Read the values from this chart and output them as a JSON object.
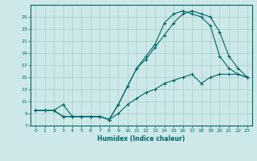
{
  "xlabel": "Humidex (Indice chaleur)",
  "bg_color": "#cce8e8",
  "grid_color": "#aacccc",
  "line_color": "#006666",
  "xlim": [
    -0.5,
    23.5
  ],
  "ylim": [
    7,
    27
  ],
  "xticks": [
    0,
    1,
    2,
    3,
    4,
    5,
    6,
    7,
    8,
    9,
    10,
    11,
    12,
    13,
    14,
    15,
    16,
    17,
    18,
    19,
    20,
    21,
    22,
    23
  ],
  "yticks": [
    7,
    9,
    11,
    13,
    15,
    17,
    19,
    21,
    23,
    25
  ],
  "line1_x": [
    0,
    1,
    2,
    3,
    4,
    5,
    6,
    7,
    8,
    9,
    10,
    11,
    12,
    13,
    14,
    15,
    16,
    17,
    18,
    19,
    20,
    21,
    22,
    23
  ],
  "line1_y": [
    9.5,
    9.5,
    9.5,
    10.5,
    8.5,
    8.5,
    8.5,
    8.5,
    8.0,
    10.5,
    13.5,
    16.5,
    18.5,
    20.5,
    24.0,
    25.5,
    26.0,
    25.5,
    25.0,
    23.5,
    18.5,
    16.5,
    15.5,
    15.0
  ],
  "line2_x": [
    0,
    1,
    2,
    3,
    4,
    5,
    6,
    7,
    8,
    9,
    10,
    11,
    12,
    13,
    14,
    15,
    16,
    17,
    18,
    19,
    20,
    21,
    22,
    23
  ],
  "line2_y": [
    9.5,
    9.5,
    9.5,
    8.5,
    8.5,
    8.5,
    8.5,
    8.5,
    8.0,
    10.5,
    13.5,
    16.5,
    18.0,
    20.0,
    22.0,
    24.0,
    25.5,
    26.0,
    25.5,
    25.0,
    22.5,
    18.5,
    16.5,
    15.0
  ],
  "line3_x": [
    0,
    1,
    2,
    3,
    4,
    5,
    6,
    7,
    8,
    9,
    10,
    11,
    12,
    13,
    14,
    15,
    16,
    17,
    18,
    19,
    20,
    21,
    22,
    23
  ],
  "line3_y": [
    9.5,
    9.5,
    9.5,
    8.5,
    8.5,
    8.5,
    8.5,
    8.5,
    8.0,
    9.0,
    10.5,
    11.5,
    12.5,
    13.0,
    14.0,
    14.5,
    15.0,
    15.5,
    14.0,
    15.0,
    15.5,
    15.5,
    15.5,
    15.0
  ]
}
